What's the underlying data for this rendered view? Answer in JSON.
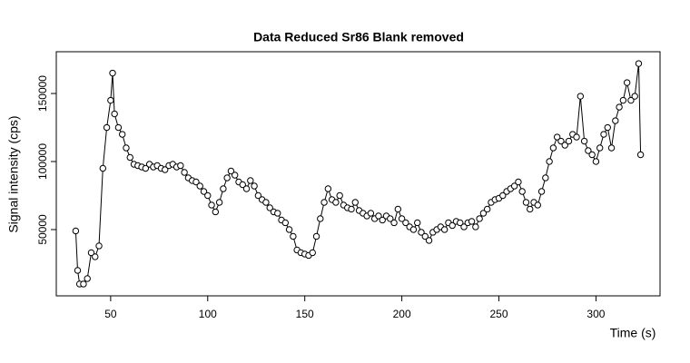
{
  "chart_data": {
    "type": "line",
    "title": "Data Reduced Sr86 Blank removed",
    "x_label": "Time (s)",
    "y_label": "Signal intensity (cps)",
    "color": "#000000",
    "marker": "open-circle",
    "x": [
      32,
      33,
      34,
      36,
      38,
      40,
      42,
      44,
      46,
      48,
      50,
      51,
      52,
      54,
      56,
      58,
      60,
      62,
      64,
      66,
      68,
      70,
      72,
      74,
      76,
      78,
      80,
      82,
      84,
      86,
      88,
      90,
      92,
      94,
      96,
      98,
      100,
      102,
      104,
      106,
      108,
      110,
      112,
      114,
      116,
      118,
      120,
      122,
      124,
      126,
      128,
      130,
      132,
      134,
      136,
      138,
      140,
      142,
      144,
      146,
      148,
      150,
      152,
      154,
      156,
      158,
      160,
      162,
      164,
      166,
      168,
      170,
      172,
      174,
      176,
      178,
      180,
      182,
      184,
      186,
      188,
      190,
      192,
      194,
      196,
      198,
      200,
      202,
      204,
      206,
      208,
      210,
      212,
      214,
      216,
      218,
      220,
      222,
      224,
      226,
      228,
      230,
      232,
      234,
      236,
      238,
      240,
      242,
      244,
      246,
      248,
      250,
      252,
      254,
      256,
      258,
      260,
      262,
      264,
      266,
      268,
      270,
      272,
      274,
      276,
      278,
      280,
      282,
      284,
      286,
      288,
      290,
      292,
      294,
      296,
      298,
      300,
      302,
      304,
      306,
      308,
      310,
      312,
      314,
      316,
      318,
      320,
      322,
      323
    ],
    "values": [
      49000,
      20000,
      10000,
      10000,
      14000,
      33000,
      30000,
      38000,
      95000,
      125000,
      145000,
      165000,
      135000,
      125000,
      120000,
      110000,
      103000,
      98000,
      97000,
      96000,
      95000,
      98000,
      96000,
      97000,
      95000,
      94000,
      97000,
      98000,
      96000,
      97000,
      92000,
      88000,
      86000,
      85000,
      82000,
      78000,
      75000,
      68000,
      63000,
      70000,
      80000,
      88000,
      93000,
      90000,
      85000,
      83000,
      80000,
      86000,
      82000,
      75000,
      72000,
      70000,
      66000,
      63000,
      62000,
      57000,
      55000,
      50000,
      45000,
      35000,
      33000,
      32000,
      31000,
      33000,
      45000,
      58000,
      70000,
      80000,
      72000,
      70000,
      75000,
      68000,
      66000,
      65000,
      70000,
      64000,
      62000,
      60000,
      62000,
      58000,
      60000,
      57000,
      60000,
      58000,
      55000,
      65000,
      58000,
      55000,
      52000,
      50000,
      55000,
      48000,
      45000,
      42000,
      48000,
      50000,
      52000,
      50000,
      55000,
      53000,
      56000,
      55000,
      52000,
      55000,
      56000,
      52000,
      58000,
      62000,
      65000,
      70000,
      72000,
      73000,
      75000,
      78000,
      80000,
      82000,
      85000,
      78000,
      70000,
      65000,
      70000,
      68000,
      78000,
      88000,
      100000,
      110000,
      118000,
      115000,
      112000,
      115000,
      120000,
      118000,
      148000,
      115000,
      108000,
      105000,
      100000,
      110000,
      120000,
      125000,
      110000,
      130000,
      140000,
      145000,
      158000,
      145000,
      148000,
      172000,
      105000
    ],
    "xlim": [
      22,
      333
    ],
    "ylim": [
      1300,
      180700
    ],
    "xticks": [
      50,
      100,
      150,
      200,
      250,
      300
    ],
    "yticks": [
      50000,
      100000,
      150000
    ]
  }
}
